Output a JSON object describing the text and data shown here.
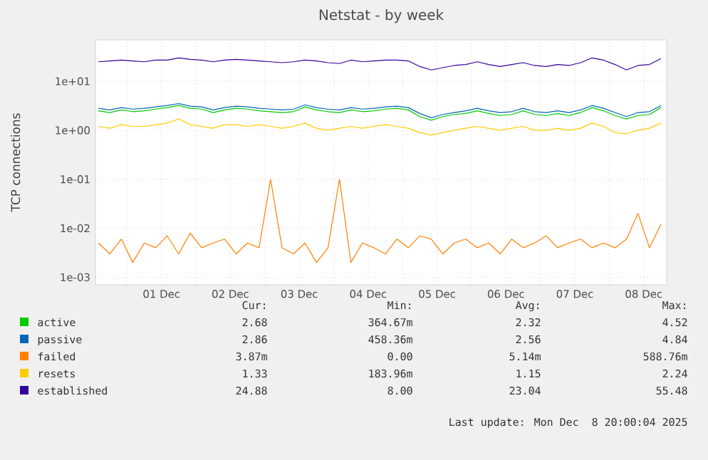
{
  "chart_data": {
    "type": "line",
    "title": "Netstat - by week",
    "ylabel": "TCP connections",
    "log": "y",
    "grid": true,
    "legend": "bottom",
    "marker": "none",
    "line_style": "solid",
    "xlim": [
      "2025-11-30T13:00",
      "2025-12-08T20:00"
    ],
    "ylim": [
      0.0007,
      70
    ],
    "yticks": [
      {
        "value": 10,
        "label": "1e+01"
      },
      {
        "value": 1,
        "label": "1e+00"
      },
      {
        "value": 0.1,
        "label": "1e-01"
      },
      {
        "value": 0.01,
        "label": "1e-02"
      },
      {
        "value": 0.001,
        "label": "1e-03"
      }
    ],
    "xticks": [
      {
        "value": "2025-12-01T00:00",
        "label": null
      },
      {
        "value": "2025-12-01T12:00",
        "label": "01 Dec"
      },
      {
        "value": "2025-12-02T00:00",
        "label": null
      },
      {
        "value": "2025-12-02T12:00",
        "label": "02 Dec"
      },
      {
        "value": "2025-12-03T00:00",
        "label": null
      },
      {
        "value": "2025-12-03T12:00",
        "label": "03 Dec"
      },
      {
        "value": "2025-12-04T00:00",
        "label": null
      },
      {
        "value": "2025-12-04T12:00",
        "label": "04 Dec"
      },
      {
        "value": "2025-12-05T00:00",
        "label": null
      },
      {
        "value": "2025-12-05T12:00",
        "label": "05 Dec"
      },
      {
        "value": "2025-12-06T00:00",
        "label": null
      },
      {
        "value": "2025-12-06T12:00",
        "label": "06 Dec"
      },
      {
        "value": "2025-12-07T00:00",
        "label": null
      },
      {
        "value": "2025-12-07T12:00",
        "label": "07 Dec"
      },
      {
        "value": "2025-12-08T00:00",
        "label": null
      },
      {
        "value": "2025-12-08T12:00",
        "label": "08 Dec"
      }
    ],
    "x": [
      "2025-11-30T14:00",
      "2025-11-30T18:00",
      "2025-11-30T22:00",
      "2025-12-01T02:00",
      "2025-12-01T06:00",
      "2025-12-01T10:00",
      "2025-12-01T14:00",
      "2025-12-01T18:00",
      "2025-12-01T22:00",
      "2025-12-02T02:00",
      "2025-12-02T06:00",
      "2025-12-02T10:00",
      "2025-12-02T14:00",
      "2025-12-02T18:00",
      "2025-12-02T22:00",
      "2025-12-03T02:00",
      "2025-12-03T06:00",
      "2025-12-03T10:00",
      "2025-12-03T14:00",
      "2025-12-03T18:00",
      "2025-12-03T22:00",
      "2025-12-04T02:00",
      "2025-12-04T06:00",
      "2025-12-04T10:00",
      "2025-12-04T14:00",
      "2025-12-04T18:00",
      "2025-12-04T22:00",
      "2025-12-05T02:00",
      "2025-12-05T06:00",
      "2025-12-05T10:00",
      "2025-12-05T14:00",
      "2025-12-05T18:00",
      "2025-12-05T22:00",
      "2025-12-06T02:00",
      "2025-12-06T06:00",
      "2025-12-06T10:00",
      "2025-12-06T14:00",
      "2025-12-06T18:00",
      "2025-12-06T22:00",
      "2025-12-07T02:00",
      "2025-12-07T06:00",
      "2025-12-07T10:00",
      "2025-12-07T14:00",
      "2025-12-07T18:00",
      "2025-12-07T22:00",
      "2025-12-08T02:00",
      "2025-12-08T06:00",
      "2025-12-08T10:00",
      "2025-12-08T14:00",
      "2025-12-08T18:00"
    ],
    "series": [
      {
        "name": "active",
        "color": "#00cc00",
        "values": [
          2.5,
          2.3,
          2.6,
          2.4,
          2.5,
          2.7,
          2.9,
          3.2,
          2.8,
          2.7,
          2.3,
          2.6,
          2.8,
          2.7,
          2.5,
          2.4,
          2.3,
          2.4,
          3.0,
          2.6,
          2.4,
          2.3,
          2.6,
          2.4,
          2.5,
          2.7,
          2.8,
          2.6,
          1.9,
          1.6,
          1.9,
          2.1,
          2.2,
          2.5,
          2.2,
          2.0,
          2.1,
          2.5,
          2.1,
          2.0,
          2.2,
          2.0,
          2.3,
          2.9,
          2.5,
          2.0,
          1.7,
          2.0,
          2.1,
          2.9
        ]
      },
      {
        "name": "passive",
        "color": "#0066b3",
        "values": [
          2.8,
          2.6,
          2.9,
          2.7,
          2.8,
          3.0,
          3.2,
          3.5,
          3.1,
          3.0,
          2.6,
          2.9,
          3.1,
          3.0,
          2.8,
          2.7,
          2.6,
          2.7,
          3.3,
          2.9,
          2.7,
          2.6,
          2.9,
          2.7,
          2.8,
          3.0,
          3.1,
          2.9,
          2.2,
          1.8,
          2.1,
          2.3,
          2.5,
          2.8,
          2.5,
          2.3,
          2.4,
          2.8,
          2.4,
          2.3,
          2.5,
          2.3,
          2.6,
          3.2,
          2.8,
          2.3,
          1.9,
          2.3,
          2.4,
          3.2
        ]
      },
      {
        "name": "failed",
        "color": "#ff8000",
        "values": [
          0.005,
          0.003,
          0.006,
          0.002,
          0.005,
          0.004,
          0.007,
          0.003,
          0.008,
          0.004,
          0.005,
          0.006,
          0.003,
          0.005,
          0.004,
          0.1,
          0.004,
          0.003,
          0.005,
          0.002,
          0.004,
          0.1,
          0.002,
          0.005,
          0.004,
          0.003,
          0.006,
          0.004,
          0.007,
          0.006,
          0.003,
          0.005,
          0.006,
          0.004,
          0.005,
          0.003,
          0.006,
          0.004,
          0.005,
          0.007,
          0.004,
          0.005,
          0.006,
          0.004,
          0.005,
          0.004,
          0.006,
          0.02,
          0.004,
          0.012
        ]
      },
      {
        "name": "resets",
        "color": "#ffcc00",
        "values": [
          1.2,
          1.1,
          1.3,
          1.2,
          1.2,
          1.3,
          1.4,
          1.7,
          1.3,
          1.2,
          1.1,
          1.3,
          1.3,
          1.2,
          1.3,
          1.2,
          1.1,
          1.2,
          1.4,
          1.1,
          1.0,
          1.1,
          1.2,
          1.1,
          1.2,
          1.3,
          1.2,
          1.1,
          0.9,
          0.8,
          0.9,
          1.0,
          1.1,
          1.2,
          1.1,
          1.0,
          1.1,
          1.2,
          1.0,
          1.0,
          1.1,
          1.0,
          1.1,
          1.4,
          1.2,
          0.9,
          0.85,
          1.0,
          1.1,
          1.4
        ]
      },
      {
        "name": "established",
        "color": "#330099",
        "values": [
          25,
          26,
          27,
          26,
          25,
          27,
          27,
          30,
          28,
          27,
          25,
          27,
          28,
          27,
          26,
          25,
          24,
          25,
          27,
          26,
          24,
          23,
          27,
          25,
          26,
          27,
          27,
          26,
          20,
          17,
          19,
          21,
          22,
          25,
          22,
          20,
          22,
          24,
          21,
          20,
          22,
          21,
          24,
          30,
          27,
          22,
          17,
          21,
          22,
          29
        ]
      }
    ],
    "annotations": [
      "Cur:",
      "Min:",
      "Avg:",
      "Max:",
      "2.68",
      "364.67m",
      "2.32",
      "4.52",
      "2.86",
      "458.36m",
      "2.56",
      "4.84",
      "3.87m",
      "0.00",
      "5.14m",
      "588.76m",
      "1.33",
      "183.96m",
      "1.15",
      "2.24",
      "24.88",
      "8.00",
      "23.04",
      "55.48",
      "Last update: Mon Dec  8 20:00:04 2025"
    ]
  }
}
